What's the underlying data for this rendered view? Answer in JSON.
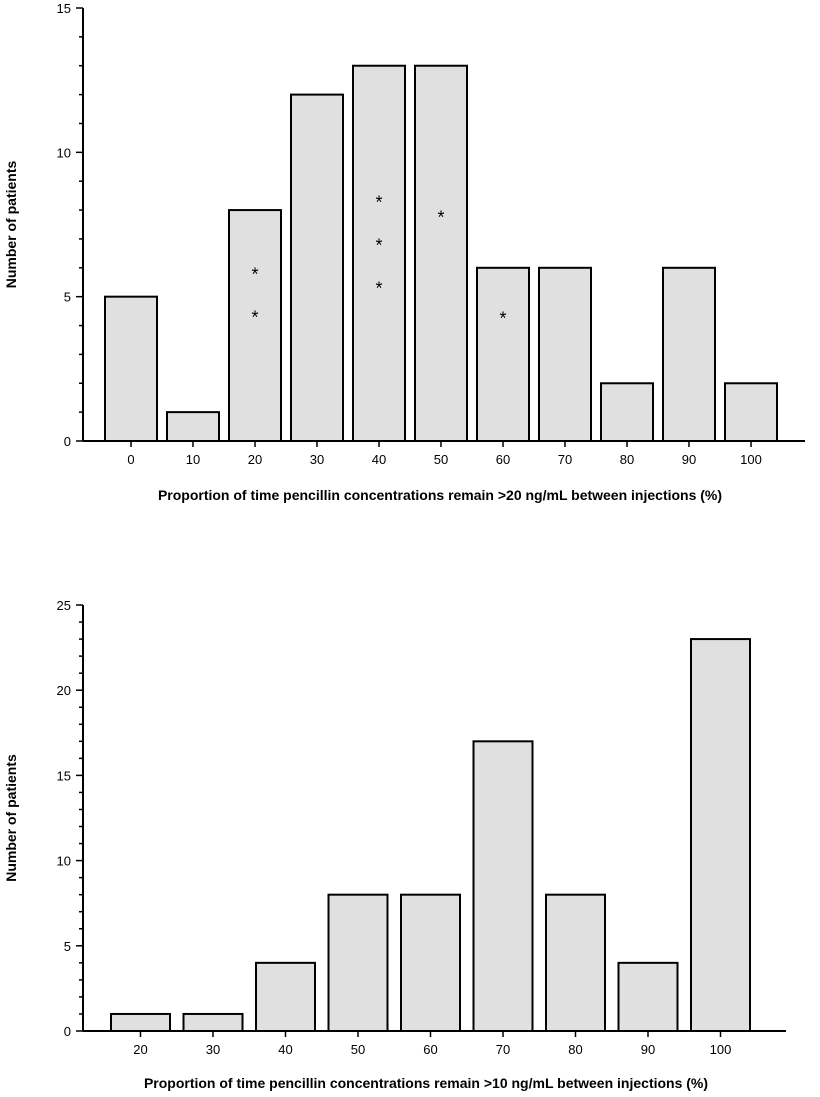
{
  "chart_data": [
    {
      "type": "bar",
      "xlabel": "Proportion of time pencillin concentrations remain >20 ng/mL between injections (%)",
      "ylabel": "Number of patients",
      "categories": [
        "0",
        "10",
        "20",
        "30",
        "40",
        "50",
        "60",
        "70",
        "80",
        "90",
        "100"
      ],
      "values": [
        5,
        1,
        8,
        12,
        13,
        13,
        6,
        6,
        2,
        6,
        2
      ],
      "stars": [
        0,
        0,
        2,
        0,
        3,
        1,
        1,
        0,
        0,
        0,
        0
      ],
      "star_symbol": "*",
      "yticks": [
        "0",
        "5",
        "10",
        "15"
      ],
      "ylim": [
        0,
        15
      ],
      "bar_fill": "#e0e0e0",
      "bar_stroke": "#000000"
    },
    {
      "type": "bar",
      "xlabel": "Proportion of time pencillin concentrations remain >10 ng/mL between injections (%)",
      "ylabel": "Number of patients",
      "categories": [
        "20",
        "30",
        "40",
        "50",
        "60",
        "70",
        "80",
        "90",
        "100"
      ],
      "values": [
        1,
        1,
        4,
        8,
        8,
        17,
        8,
        4,
        23
      ],
      "stars": [
        0,
        0,
        0,
        0,
        0,
        0,
        0,
        0,
        0
      ],
      "star_symbol": "*",
      "yticks": [
        "0",
        "5",
        "10",
        "15",
        "20",
        "25"
      ],
      "ylim": [
        0,
        25
      ],
      "bar_fill": "#e0e0e0",
      "bar_stroke": "#000000"
    }
  ]
}
